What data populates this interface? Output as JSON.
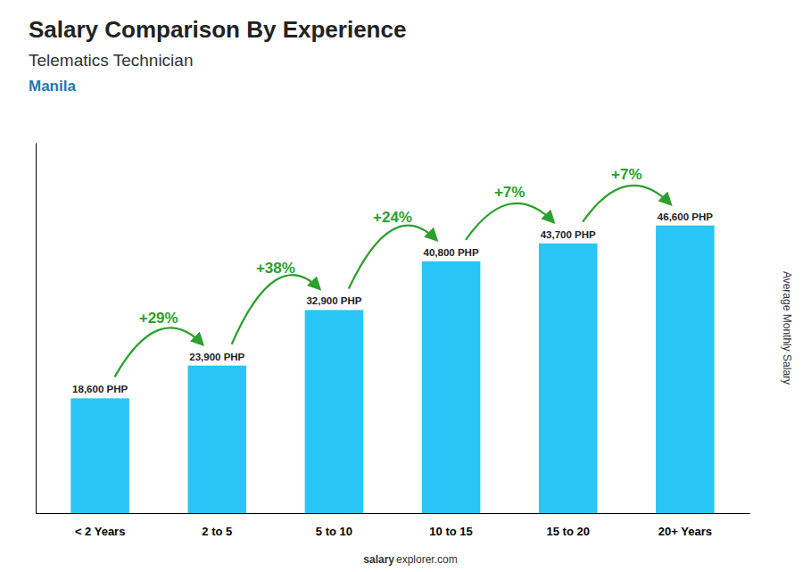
{
  "chart_data": {
    "type": "bar",
    "title": "Salary Comparison By Experience",
    "subtitle": "Telematics Technician",
    "ylabel": "Average Monthly Salary",
    "annotations": [
      "Manila",
      "salary",
      "explorer.com"
    ],
    "categories": [
      "< 2 Years",
      "2 to 5",
      "5 to 10",
      "10 to 15",
      "15 to 20",
      "20+ Years"
    ],
    "values": [
      18600,
      23900,
      32900,
      40800,
      43700,
      46600
    ],
    "value_labels": [
      "18,600 PHP",
      "23,900 PHP",
      "32,900 PHP",
      "40,800 PHP",
      "43,700 PHP",
      "46,600 PHP"
    ],
    "data_labels": true,
    "changes": [
      {
        "value": 29,
        "label": "+29%"
      },
      {
        "value": 38,
        "label": "+38%"
      },
      {
        "value": 24,
        "label": "+24%"
      },
      {
        "value": 7,
        "label": "+7%"
      },
      {
        "value": 7,
        "label": "+7%"
      }
    ],
    "color": "#29C5F6",
    "ylim": [
      0,
      60000
    ],
    "tick_labels": "x",
    "grid": false
  }
}
